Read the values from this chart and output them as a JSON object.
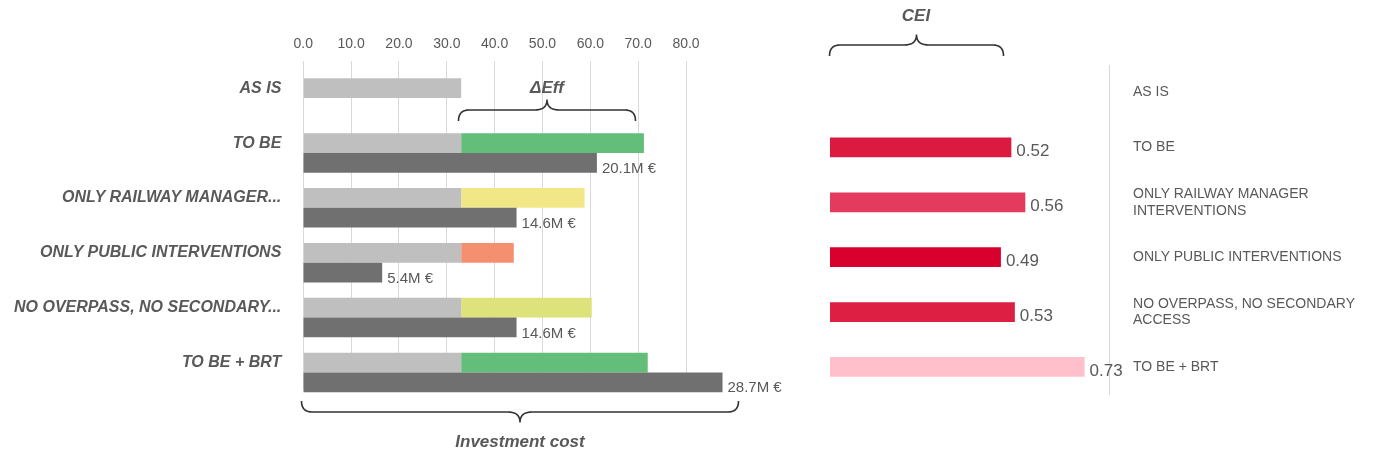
{
  "chart_data": [
    {
      "type": "bar",
      "orientation": "horizontal",
      "categories": [
        "AS IS",
        "TO BE",
        "ONLY RAILWAY MANAGER...",
        "ONLY PUBLIC INTERVENTIONS",
        "NO OVERPASS, NO SECONDARY...",
        "TO BE + BRT"
      ],
      "series": [
        {
          "color": "#bfbfbf",
          "values": [
            33,
            33,
            33,
            33,
            33,
            33
          ]
        },
        {
          "colors": [
            null,
            "#62be79",
            "#f2e786",
            "#f4906f",
            "#dde27b",
            "#62be79"
          ],
          "values": [
            null,
            38.2,
            25.8,
            11,
            27.3,
            39
          ]
        }
      ],
      "stacked": true,
      "xlim": [
        0,
        80
      ],
      "xticks": [
        {
          "value": 0,
          "label": "0.0"
        },
        {
          "value": 10,
          "label": "10.0"
        },
        {
          "value": 20,
          "label": "20.0"
        },
        {
          "value": 30,
          "label": "30.0"
        },
        {
          "value": 40,
          "label": "40.0"
        },
        {
          "value": 50,
          "label": "50.0"
        },
        {
          "value": 60,
          "label": "60.0"
        },
        {
          "value": 70,
          "label": "70.0"
        },
        {
          "value": 80,
          "label": "80.0"
        }
      ],
      "grid": "x",
      "annotations": [
        "ΔEff"
      ]
    },
    {
      "type": "bar",
      "orientation": "horizontal",
      "categories": [
        null,
        null,
        null,
        null,
        null,
        null
      ],
      "color": "#707070",
      "values": [
        null,
        20.1,
        14.6,
        5.4,
        14.6,
        28.7
      ],
      "value_labels": [
        null,
        "20.1M €",
        "14.6M €",
        "5.4M €",
        "14.6M €",
        "28.7M €"
      ],
      "tick_labels": false,
      "annotations": [
        "Investment cost"
      ]
    },
    {
      "type": "bar",
      "orientation": "horizontal",
      "categories": [
        "AS IS",
        "TO BE",
        "ONLY RAILWAY MANAGER INTERVENTIONS",
        "ONLY PUBLIC INTERVENTIONS",
        "NO OVERPASS, NO SECONDARY ACCESS",
        "TO BE + BRT"
      ],
      "values": [
        null,
        0.52,
        0.56,
        0.49,
        0.53,
        0.73
      ],
      "colors": [
        null,
        "#dc1a40",
        "#e43a5e",
        "#d8002c",
        "#dd1f44",
        "#ffc0cb"
      ],
      "data_labels": true,
      "tick_labels": "y",
      "annotations": [
        "CEI"
      ]
    }
  ]
}
